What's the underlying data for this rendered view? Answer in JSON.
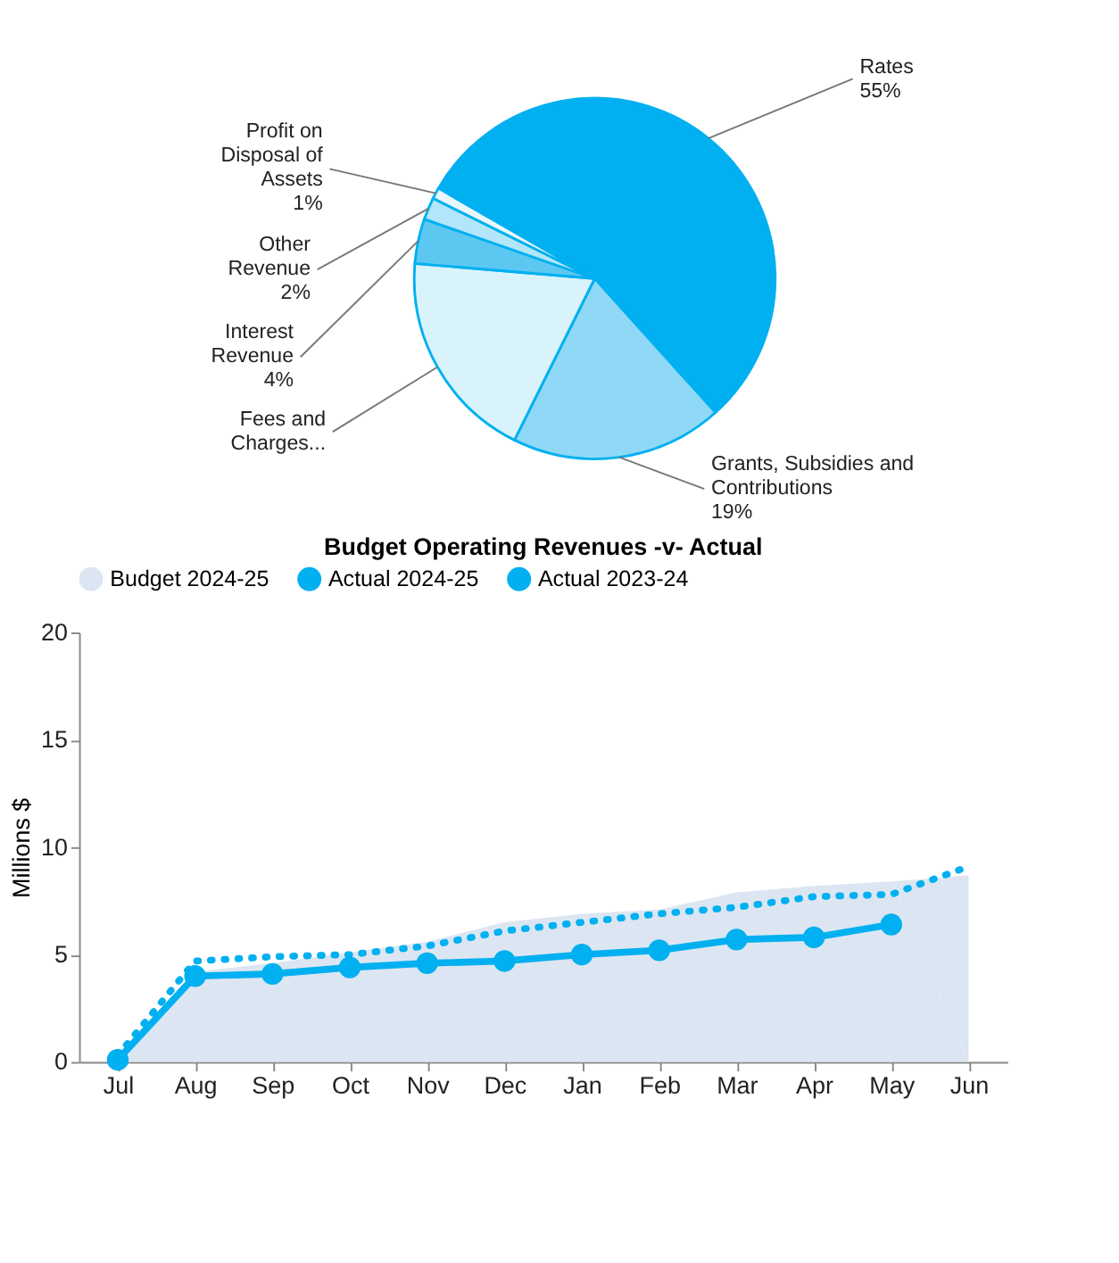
{
  "chart_data": [
    {
      "type": "pie",
      "categories": [
        "Rates",
        "Grants, Subsidies and Contributions",
        "Fees and Charges...",
        "Interest Revenue",
        "Other Revenue",
        "Profit on Disposal of Assets"
      ],
      "values": [
        55,
        19,
        19,
        4,
        2,
        1
      ],
      "colors": [
        "#00b0f0",
        "#8fd9f6",
        "#d9f3fd",
        "#5cc8f2",
        "#b3e6fa",
        "#e8f7fd"
      ],
      "value_labels": [
        "55%",
        "19%",
        null,
        "4%",
        "2%",
        "1%"
      ]
    },
    {
      "type": "line",
      "title": "Budget Operating Revenues -v- Actual",
      "ylabel": "Millions $",
      "categories": [
        "Jul",
        "Aug",
        "Sep",
        "Oct",
        "Nov",
        "Dec",
        "Jan",
        "Feb",
        "Mar",
        "Apr",
        "May",
        "Jun"
      ],
      "series": [
        {
          "name": "Budget 2024-25",
          "type": "area",
          "color": "#dce6f2",
          "values": [
            0,
            4.2,
            4.6,
            5.1,
            5.6,
            6.5,
            6.9,
            7.1,
            7.9,
            8.2,
            8.4,
            8.7
          ]
        },
        {
          "name": "Actual 2024-25",
          "type": "line",
          "color": "#00b0f0",
          "marker": "circle",
          "line_style": "solid",
          "values": [
            0.1,
            4.0,
            4.1,
            4.4,
            4.6,
            4.7,
            5.0,
            5.2,
            5.7,
            5.8,
            6.4,
            null
          ]
        },
        {
          "name": "Actual 2023-24",
          "type": "line",
          "color": "#00b0f0",
          "marker": "none",
          "line_style": "dotted",
          "values": [
            0.3,
            4.7,
            4.9,
            5.0,
            5.4,
            6.1,
            6.5,
            6.9,
            7.2,
            7.7,
            7.8,
            9.1
          ]
        }
      ],
      "ylim": [
        0,
        20
      ],
      "yticks": [
        0,
        5,
        10,
        15,
        20
      ],
      "grid": false,
      "legend": "top"
    }
  ]
}
